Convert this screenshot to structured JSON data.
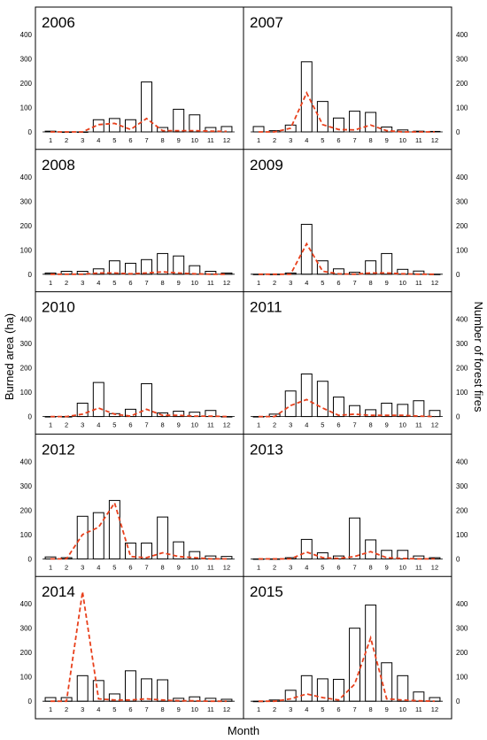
{
  "figure": {
    "y_left_label": "Burned area (ha)",
    "y_right_label": "Number of forest fires",
    "x_label": "Month"
  },
  "colors": {
    "bars": "#000000",
    "fires_line": "#e8401c",
    "frame": "#000000"
  },
  "chart_data": [
    {
      "type": "bar",
      "title": "2006",
      "categories": [
        "1",
        "2",
        "3",
        "4",
        "5",
        "6",
        "7",
        "8",
        "9",
        "10",
        "11",
        "12"
      ],
      "ylim": [
        0,
        450
      ],
      "yticks": [
        0,
        100,
        200,
        300,
        400
      ],
      "series": [
        {
          "values": [
            3,
            0,
            0,
            50,
            55,
            50,
            205,
            18,
            93,
            70,
            18,
            22
          ]
        },
        {
          "values": [
            0,
            0,
            0,
            30,
            35,
            10,
            55,
            5,
            5,
            5,
            3,
            2
          ]
        }
      ]
    },
    {
      "type": "bar",
      "title": "2007",
      "categories": [
        "1",
        "2",
        "3",
        "4",
        "5",
        "6",
        "7",
        "8",
        "9",
        "10",
        "11",
        "12"
      ],
      "ylim": [
        0,
        450
      ],
      "yticks": [
        0,
        100,
        200,
        300,
        400
      ],
      "series": [
        {
          "values": [
            22,
            5,
            28,
            288,
            125,
            57,
            85,
            80,
            20,
            8,
            3,
            2
          ]
        },
        {
          "values": [
            0,
            0,
            15,
            160,
            30,
            10,
            8,
            28,
            5,
            0,
            0,
            0
          ]
        }
      ]
    },
    {
      "type": "bar",
      "title": "2008",
      "categories": [
        "1",
        "2",
        "3",
        "4",
        "5",
        "6",
        "7",
        "8",
        "9",
        "10",
        "11",
        "12"
      ],
      "ylim": [
        0,
        450
      ],
      "yticks": [
        0,
        100,
        200,
        300,
        400
      ],
      "series": [
        {
          "values": [
            5,
            12,
            12,
            22,
            55,
            45,
            60,
            85,
            75,
            35,
            12,
            5
          ]
        },
        {
          "values": [
            0,
            0,
            0,
            5,
            5,
            2,
            5,
            10,
            5,
            2,
            0,
            0
          ]
        }
      ]
    },
    {
      "type": "bar",
      "title": "2009",
      "categories": [
        "1",
        "2",
        "3",
        "4",
        "5",
        "6",
        "7",
        "8",
        "9",
        "10",
        "11",
        "12"
      ],
      "ylim": [
        0,
        450
      ],
      "yticks": [
        0,
        100,
        200,
        300,
        400
      ],
      "series": [
        {
          "values": [
            0,
            0,
            5,
            205,
            55,
            22,
            8,
            55,
            85,
            20,
            13,
            0
          ]
        },
        {
          "values": [
            0,
            0,
            0,
            125,
            12,
            2,
            0,
            5,
            5,
            2,
            0,
            0
          ]
        }
      ]
    },
    {
      "type": "bar",
      "title": "2010",
      "categories": [
        "1",
        "2",
        "3",
        "4",
        "5",
        "6",
        "7",
        "8",
        "9",
        "10",
        "11",
        "12"
      ],
      "ylim": [
        0,
        450
      ],
      "yticks": [
        0,
        100,
        200,
        300,
        400
      ],
      "series": [
        {
          "values": [
            0,
            0,
            55,
            140,
            12,
            30,
            135,
            15,
            22,
            18,
            25,
            0
          ]
        },
        {
          "values": [
            0,
            0,
            10,
            35,
            10,
            2,
            30,
            5,
            5,
            2,
            2,
            0
          ]
        }
      ]
    },
    {
      "type": "bar",
      "title": "2011",
      "categories": [
        "1",
        "2",
        "3",
        "4",
        "5",
        "6",
        "7",
        "8",
        "9",
        "10",
        "11",
        "12"
      ],
      "ylim": [
        0,
        450
      ],
      "yticks": [
        0,
        100,
        200,
        300,
        400
      ],
      "series": [
        {
          "values": [
            0,
            10,
            105,
            175,
            145,
            80,
            45,
            28,
            55,
            50,
            65,
            25
          ]
        },
        {
          "values": [
            0,
            0,
            45,
            70,
            35,
            5,
            10,
            5,
            5,
            5,
            2,
            0
          ]
        }
      ]
    },
    {
      "type": "bar",
      "title": "2012",
      "categories": [
        "1",
        "2",
        "3",
        "4",
        "5",
        "6",
        "7",
        "8",
        "9",
        "10",
        "11",
        "12"
      ],
      "ylim": [
        0,
        450
      ],
      "yticks": [
        0,
        100,
        200,
        300,
        400
      ],
      "series": [
        {
          "values": [
            8,
            5,
            175,
            190,
            240,
            65,
            65,
            172,
            70,
            30,
            12,
            10
          ]
        },
        {
          "values": [
            0,
            0,
            100,
            130,
            230,
            10,
            5,
            25,
            10,
            5,
            0,
            0
          ]
        }
      ]
    },
    {
      "type": "bar",
      "title": "2013",
      "categories": [
        "1",
        "2",
        "3",
        "4",
        "5",
        "6",
        "7",
        "8",
        "9",
        "10",
        "11",
        "12"
      ],
      "ylim": [
        0,
        450
      ],
      "yticks": [
        0,
        100,
        200,
        300,
        400
      ],
      "series": [
        {
          "values": [
            0,
            0,
            5,
            80,
            25,
            12,
            168,
            78,
            35,
            35,
            12,
            5
          ]
        },
        {
          "values": [
            0,
            0,
            0,
            28,
            5,
            2,
            10,
            30,
            5,
            2,
            0,
            0
          ]
        }
      ]
    },
    {
      "type": "bar",
      "title": "2014",
      "categories": [
        "1",
        "2",
        "3",
        "4",
        "5",
        "6",
        "7",
        "8",
        "9",
        "10",
        "11",
        "12"
      ],
      "ylim": [
        0,
        450
      ],
      "yticks": [
        0,
        100,
        200,
        300,
        400
      ],
      "series": [
        {
          "values": [
            15,
            15,
            105,
            85,
            30,
            125,
            92,
            88,
            12,
            18,
            12,
            8
          ]
        },
        {
          "values": [
            0,
            0,
            450,
            10,
            5,
            5,
            10,
            5,
            2,
            2,
            0,
            0
          ]
        }
      ]
    },
    {
      "type": "bar",
      "title": "2015",
      "categories": [
        "1",
        "2",
        "3",
        "4",
        "5",
        "6",
        "7",
        "8",
        "9",
        "10",
        "11",
        "12"
      ],
      "ylim": [
        0,
        450
      ],
      "yticks": [
        0,
        100,
        200,
        300,
        400
      ],
      "series": [
        {
          "values": [
            0,
            5,
            45,
            105,
            92,
            90,
            300,
            395,
            158,
            105,
            38,
            15
          ]
        },
        {
          "values": [
            0,
            0,
            10,
            30,
            15,
            5,
            70,
            260,
            10,
            5,
            2,
            0
          ]
        }
      ]
    }
  ]
}
